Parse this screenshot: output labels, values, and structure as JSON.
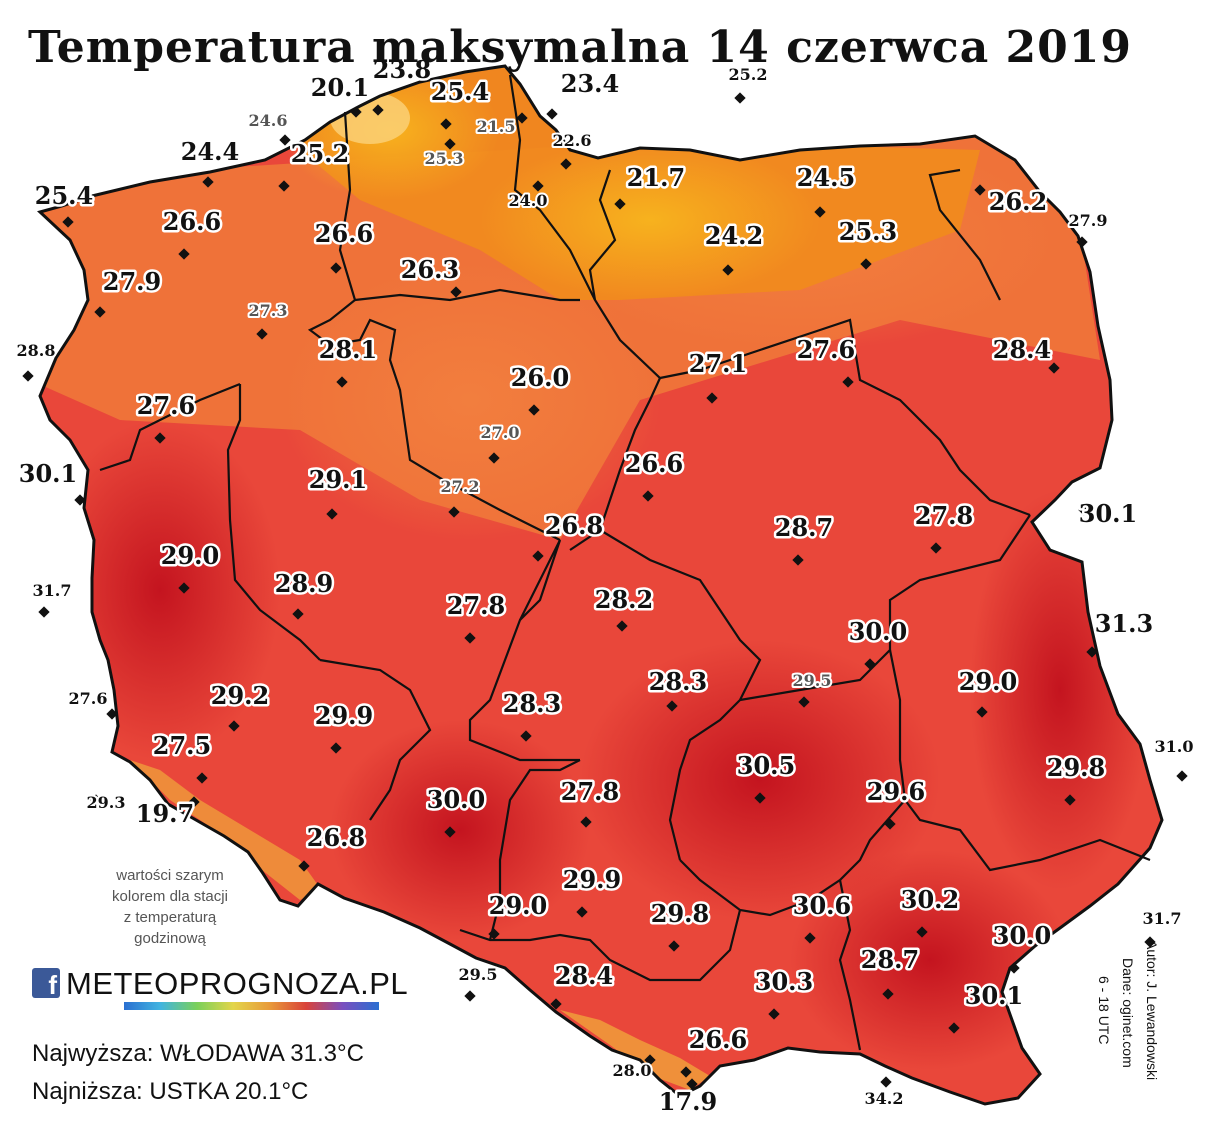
{
  "title": "Temperatura maksymalna 14 czerwca 2019",
  "note": [
    "wartości szarym",
    "kolorem dla stacji",
    "z temperaturą",
    "godzinową"
  ],
  "stats": {
    "highest": "Najwyższa: WŁODAWA 31.3°C",
    "lowest": "Najniższa: USTKA 20.1°C"
  },
  "credits": {
    "author": "Autor: J. Lewandowski",
    "data": "Dane: oginet.com",
    "time": "6 - 18 UTC"
  },
  "logo": {
    "icon": "facebook-icon",
    "text": "METEOPROGNOZA.PL"
  },
  "colors": {
    "cool": "#f5a21a",
    "mild": "#f07a3a",
    "warm": "#e9473a",
    "hot": "#d6232a",
    "hotter": "#b8101c",
    "mountain": "#f3c23a",
    "border": "#111111"
  },
  "stations": [
    {
      "t": "23.8",
      "size": "large",
      "gray": false
    },
    {
      "t": "20.1",
      "size": "large",
      "gray": false
    },
    {
      "t": "25.4",
      "size": "large",
      "gray": false
    },
    {
      "t": "23.4",
      "size": "large",
      "gray": false
    },
    {
      "t": "25.2",
      "size": "small",
      "gray": false
    },
    {
      "t": "24.6",
      "size": "small",
      "gray": true
    },
    {
      "t": "21.5",
      "size": "small",
      "gray": true
    },
    {
      "t": "22.6",
      "size": "small",
      "gray": false
    },
    {
      "t": "25.3",
      "size": "small",
      "gray": true
    },
    {
      "t": "24.4",
      "size": "large",
      "gray": false
    },
    {
      "t": "25.2",
      "size": "large",
      "gray": false
    },
    {
      "t": "21.7",
      "size": "large",
      "gray": false
    },
    {
      "t": "24.5",
      "size": "large",
      "gray": false
    },
    {
      "t": "24.0",
      "size": "small",
      "gray": false
    },
    {
      "t": "25.4",
      "size": "large",
      "gray": false
    },
    {
      "t": "26.2",
      "size": "large",
      "gray": false
    },
    {
      "t": "27.9",
      "size": "small",
      "gray": false
    },
    {
      "t": "26.6",
      "size": "large",
      "gray": false
    },
    {
      "t": "26.6",
      "size": "large",
      "gray": false
    },
    {
      "t": "24.2",
      "size": "large",
      "gray": false
    },
    {
      "t": "25.3",
      "size": "large",
      "gray": false
    },
    {
      "t": "26.3",
      "size": "large",
      "gray": false
    },
    {
      "t": "27.9",
      "size": "large",
      "gray": false
    },
    {
      "t": "27.3",
      "size": "small",
      "gray": true
    },
    {
      "t": "28.8",
      "size": "small",
      "gray": false
    },
    {
      "t": "28.1",
      "size": "large",
      "gray": false
    },
    {
      "t": "27.1",
      "size": "large",
      "gray": false
    },
    {
      "t": "27.6",
      "size": "large",
      "gray": false
    },
    {
      "t": "28.4",
      "size": "large",
      "gray": false
    },
    {
      "t": "26.0",
      "size": "large",
      "gray": false
    },
    {
      "t": "27.6",
      "size": "large",
      "gray": false
    },
    {
      "t": "27.0",
      "size": "small",
      "gray": true
    },
    {
      "t": "26.6",
      "size": "large",
      "gray": false
    },
    {
      "t": "30.1",
      "size": "large",
      "gray": false
    },
    {
      "t": "29.1",
      "size": "large",
      "gray": false
    },
    {
      "t": "27.2",
      "size": "small",
      "gray": true
    },
    {
      "t": "26.8",
      "size": "large",
      "gray": false
    },
    {
      "t": "28.7",
      "size": "large",
      "gray": false
    },
    {
      "t": "27.8",
      "size": "large",
      "gray": false
    },
    {
      "t": "30.1",
      "size": "large",
      "gray": false
    },
    {
      "t": "29.0",
      "size": "large",
      "gray": false
    },
    {
      "t": "31.7",
      "size": "small",
      "gray": false
    },
    {
      "t": "28.9",
      "size": "large",
      "gray": false
    },
    {
      "t": "27.8",
      "size": "large",
      "gray": false
    },
    {
      "t": "28.2",
      "size": "large",
      "gray": false
    },
    {
      "t": "30.0",
      "size": "large",
      "gray": false
    },
    {
      "t": "31.3",
      "size": "large",
      "gray": false
    },
    {
      "t": "27.6",
      "size": "small",
      "gray": false
    },
    {
      "t": "29.2",
      "size": "large",
      "gray": false
    },
    {
      "t": "28.3",
      "size": "large",
      "gray": false
    },
    {
      "t": "29.5",
      "size": "small",
      "gray": true
    },
    {
      "t": "29.0",
      "size": "large",
      "gray": false
    },
    {
      "t": "29.9",
      "size": "large",
      "gray": false
    },
    {
      "t": "28.3",
      "size": "large",
      "gray": false
    },
    {
      "t": "31.0",
      "size": "small",
      "gray": false
    },
    {
      "t": "27.5",
      "size": "large",
      "gray": false
    },
    {
      "t": "30.5",
      "size": "large",
      "gray": false
    },
    {
      "t": "29.8",
      "size": "large",
      "gray": false
    },
    {
      "t": "29.3",
      "size": "small",
      "gray": false
    },
    {
      "t": "19.7",
      "size": "large",
      "gray": false
    },
    {
      "t": "30.0",
      "size": "large",
      "gray": false
    },
    {
      "t": "27.8",
      "size": "large",
      "gray": false
    },
    {
      "t": "29.6",
      "size": "large",
      "gray": false
    },
    {
      "t": "26.8",
      "size": "large",
      "gray": false
    },
    {
      "t": "29.9",
      "size": "large",
      "gray": false
    },
    {
      "t": "29.0",
      "size": "large",
      "gray": false
    },
    {
      "t": "29.8",
      "size": "large",
      "gray": false
    },
    {
      "t": "30.6",
      "size": "large",
      "gray": false
    },
    {
      "t": "30.2",
      "size": "large",
      "gray": false
    },
    {
      "t": "31.7",
      "size": "small",
      "gray": false
    },
    {
      "t": "30.0",
      "size": "large",
      "gray": false
    },
    {
      "t": "29.5",
      "size": "small",
      "gray": false
    },
    {
      "t": "28.4",
      "size": "large",
      "gray": false
    },
    {
      "t": "30.3",
      "size": "large",
      "gray": false
    },
    {
      "t": "28.7",
      "size": "large",
      "gray": false
    },
    {
      "t": "30.1",
      "size": "large",
      "gray": false
    },
    {
      "t": "26.6",
      "size": "large",
      "gray": false
    },
    {
      "t": "28.0",
      "size": "small",
      "gray": false
    },
    {
      "t": "17.9",
      "size": "large",
      "gray": false
    },
    {
      "t": "34.2",
      "size": "small",
      "gray": false
    }
  ]
}
